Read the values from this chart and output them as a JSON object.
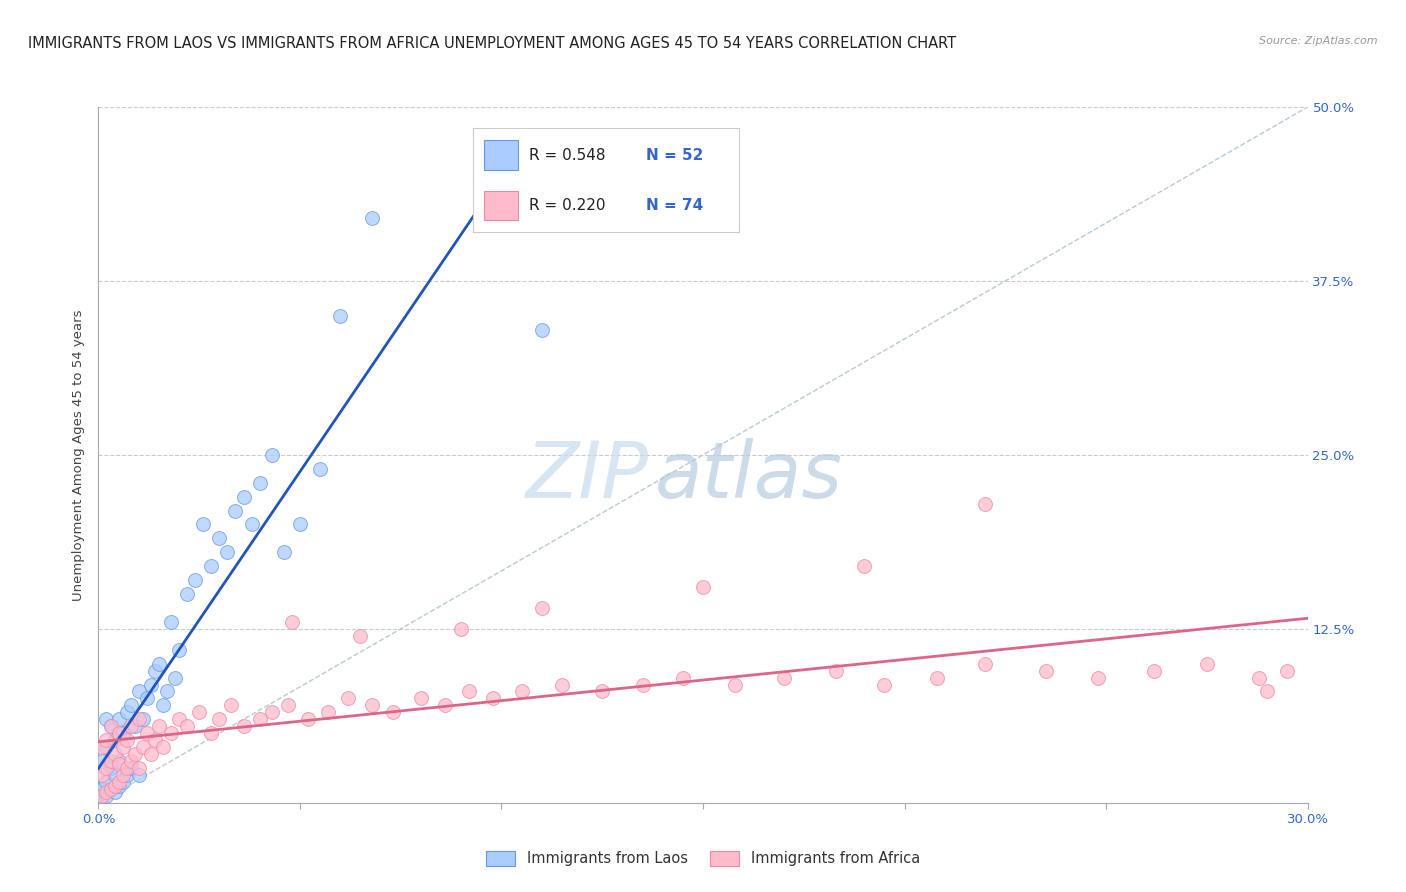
{
  "title": "IMMIGRANTS FROM LAOS VS IMMIGRANTS FROM AFRICA UNEMPLOYMENT AMONG AGES 45 TO 54 YEARS CORRELATION CHART",
  "source": "Source: ZipAtlas.com",
  "ylabel": "Unemployment Among Ages 45 to 54 years",
  "xlim": [
    0.0,
    0.3
  ],
  "ylim": [
    0.0,
    0.5
  ],
  "xticks": [
    0.0,
    0.05,
    0.1,
    0.15,
    0.2,
    0.25,
    0.3
  ],
  "yticks": [
    0.0,
    0.125,
    0.25,
    0.375,
    0.5
  ],
  "grid_color": "#cccccc",
  "background_color": "#ffffff",
  "blue_color": "#aaccff",
  "pink_color": "#ffbbcc",
  "blue_edge": "#6699dd",
  "pink_edge": "#ee88aa",
  "blue_line_color": "#2255bb",
  "pink_line_color": "#dd6688",
  "ref_line_color": "#aabbcc",
  "title_fontsize": 10.5,
  "axis_label_fontsize": 9.5,
  "tick_fontsize": 9.5,
  "laos_x": [
    0.001,
    0.001,
    0.001,
    0.002,
    0.002,
    0.002,
    0.002,
    0.003,
    0.003,
    0.003,
    0.004,
    0.004,
    0.004,
    0.005,
    0.005,
    0.005,
    0.006,
    0.006,
    0.007,
    0.007,
    0.008,
    0.008,
    0.009,
    0.01,
    0.01,
    0.011,
    0.012,
    0.013,
    0.014,
    0.015,
    0.016,
    0.017,
    0.018,
    0.019,
    0.02,
    0.022,
    0.024,
    0.026,
    0.028,
    0.03,
    0.032,
    0.034,
    0.036,
    0.038,
    0.04,
    0.043,
    0.046,
    0.05,
    0.055,
    0.06,
    0.068,
    0.11
  ],
  "laos_y": [
    0.005,
    0.01,
    0.03,
    0.005,
    0.015,
    0.04,
    0.06,
    0.01,
    0.025,
    0.055,
    0.008,
    0.02,
    0.045,
    0.012,
    0.03,
    0.06,
    0.015,
    0.05,
    0.02,
    0.065,
    0.025,
    0.07,
    0.055,
    0.02,
    0.08,
    0.06,
    0.075,
    0.085,
    0.095,
    0.1,
    0.07,
    0.08,
    0.13,
    0.09,
    0.11,
    0.15,
    0.16,
    0.2,
    0.17,
    0.19,
    0.18,
    0.21,
    0.22,
    0.2,
    0.23,
    0.25,
    0.18,
    0.2,
    0.24,
    0.35,
    0.42,
    0.34
  ],
  "africa_x": [
    0.001,
    0.001,
    0.001,
    0.002,
    0.002,
    0.002,
    0.003,
    0.003,
    0.003,
    0.004,
    0.004,
    0.005,
    0.005,
    0.005,
    0.006,
    0.006,
    0.007,
    0.007,
    0.008,
    0.008,
    0.009,
    0.01,
    0.01,
    0.011,
    0.012,
    0.013,
    0.014,
    0.015,
    0.016,
    0.018,
    0.02,
    0.022,
    0.025,
    0.028,
    0.03,
    0.033,
    0.036,
    0.04,
    0.043,
    0.047,
    0.052,
    0.057,
    0.062,
    0.068,
    0.073,
    0.08,
    0.086,
    0.092,
    0.098,
    0.105,
    0.115,
    0.125,
    0.135,
    0.145,
    0.158,
    0.17,
    0.183,
    0.195,
    0.208,
    0.22,
    0.235,
    0.248,
    0.262,
    0.275,
    0.288,
    0.295,
    0.048,
    0.065,
    0.09,
    0.11,
    0.15,
    0.19,
    0.22,
    0.29
  ],
  "africa_y": [
    0.005,
    0.02,
    0.04,
    0.008,
    0.025,
    0.045,
    0.01,
    0.03,
    0.055,
    0.012,
    0.035,
    0.015,
    0.028,
    0.05,
    0.02,
    0.04,
    0.025,
    0.045,
    0.03,
    0.055,
    0.035,
    0.025,
    0.06,
    0.04,
    0.05,
    0.035,
    0.045,
    0.055,
    0.04,
    0.05,
    0.06,
    0.055,
    0.065,
    0.05,
    0.06,
    0.07,
    0.055,
    0.06,
    0.065,
    0.07,
    0.06,
    0.065,
    0.075,
    0.07,
    0.065,
    0.075,
    0.07,
    0.08,
    0.075,
    0.08,
    0.085,
    0.08,
    0.085,
    0.09,
    0.085,
    0.09,
    0.095,
    0.085,
    0.09,
    0.1,
    0.095,
    0.09,
    0.095,
    0.1,
    0.09,
    0.095,
    0.13,
    0.12,
    0.125,
    0.14,
    0.155,
    0.17,
    0.215,
    0.08
  ]
}
